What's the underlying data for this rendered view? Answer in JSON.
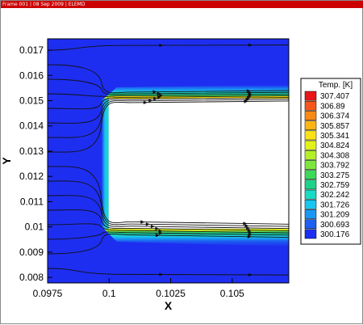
{
  "frame_header": "Frame 001 | 08 Sep 2009 | ELEMD",
  "chart_data": {
    "type": "heatmap",
    "xlabel": "X",
    "ylabel": "Y",
    "xlim": [
      0.0975,
      0.1073
    ],
    "ylim": [
      0.00778,
      0.01745
    ],
    "xticks": [
      0.0975,
      0.1,
      0.1025,
      0.105
    ],
    "xtick_labels": [
      "0.0975",
      "0.1",
      "0.1025",
      "0.105"
    ],
    "yticks": [
      0.008,
      0.009,
      0.01,
      0.011,
      0.012,
      0.013,
      0.014,
      0.015,
      0.016,
      0.017
    ],
    "ytick_labels": [
      "0.008",
      "0.009",
      "0.01",
      "0.011",
      "0.012",
      "0.013",
      "0.014",
      "0.015",
      "0.016",
      "0.017"
    ],
    "obstacle": {
      "x": [
        0.09998,
        0.1073
      ],
      "y": [
        0.00993,
        0.01508
      ]
    },
    "legend": {
      "title": "Temp. [K]",
      "placement": "right",
      "levels": [
        307.407,
        306.89,
        306.374,
        305.857,
        305.341,
        304.824,
        304.308,
        303.792,
        303.275,
        302.759,
        302.242,
        301.726,
        301.209,
        300.693,
        300.176
      ],
      "colors": [
        "#e8161a",
        "#f5571a",
        "#f98a15",
        "#fdb513",
        "#fbe216",
        "#e2f218",
        "#b4ef28",
        "#7de63c",
        "#3dd95a",
        "#1dd289",
        "#19dbc3",
        "#19c6ee",
        "#1a97f3",
        "#1c5ff2",
        "#1e2ef0"
      ]
    },
    "field": {
      "background_color": "#1e2ef0"
    }
  }
}
